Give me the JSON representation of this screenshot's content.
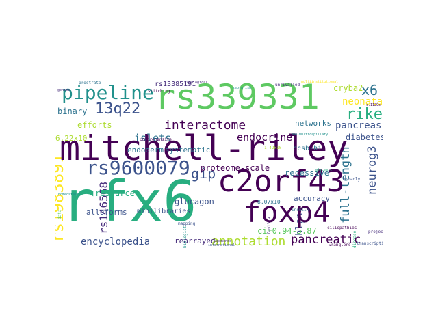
{
  "words": {
    "mitchell_riley": "mitchell-riley",
    "rfx6": "rfx6",
    "rs339331": "rs339331",
    "c2orf43": "c2orf43",
    "foxp4": "foxp4",
    "pipeline": "pipeline",
    "rs9600079": "rs9600079",
    "annotation": "annotation",
    "interactome": "interactome",
    "q13q22": "13q22",
    "riken": "riken",
    "x6": "x6",
    "rs1983891": "rs1983891",
    "gip": "gip",
    "pancreatic": "pancreatic",
    "encyclopedia": "encyclopedia",
    "islets": "islets",
    "endocrine": "endocrine",
    "neonatal": "neonatal",
    "pancreas": "pancreas",
    "cryba2": "cryba2",
    "proteome_scale": "proteome-scale",
    "full_length": "full-length",
    "neurog3": "neurog3",
    "recessive": "recessive",
    "rs13385191": "rs13385191",
    "binary": "binary",
    "efforts": "efforts",
    "endoderm": "endoderm",
    "systematic": "systematic",
    "networks": "networks",
    "diabetes": "diabetes",
    "glucagon": "glucagon",
    "resource": "resource",
    "alloforms": "alloforms",
    "minilibraries": "minilibraries",
    "accuracy": "accuracy",
    "ccsb_hi1": "ccsb-hi1",
    "rs146568": "rs146568",
    "rearrayed": "rearrayed",
    "ci": "ci=0.94-5.87",
    "hlpn": "hlpn",
    "n622": "6.22x10",
    "n807": "8.07x10",
    "prostrate": "prostrate",
    "stitching": "stitching",
    "comprehensive": "comprehensive",
    "mapping": "mapping",
    "unrivalled": "unrivalled",
    "broadly": "broadly",
    "insulin": "insulin",
    "project": "project",
    "wranglers": "wranglers",
    "transcription": "transcription",
    "topological": "topological",
    "multiinstitutional": "multiinstitutional",
    "n384": "384-multicapillary",
    "fam132a": "fam132a",
    "biologist": "biologist",
    "openendo": "openendo",
    "international": "international",
    "homeostasis": "homeostasis",
    "genome": "genome",
    "n142": "1.42x10",
    "c1129c": "c.1129c",
    "zebrafish": "zebrafish",
    "glycemic": "glycemic",
    "data": "data",
    "disease": "disease",
    "cilia": "ciliopathies"
  },
  "colors": {
    "dark_purple": "#440154",
    "purple": "#472d7b",
    "indigo": "#3b528b",
    "blue": "#2c728e",
    "teal": "#21918c",
    "green": "#28ae80",
    "light_green": "#5ec962",
    "lime": "#addc30",
    "yellow": "#fde725"
  }
}
